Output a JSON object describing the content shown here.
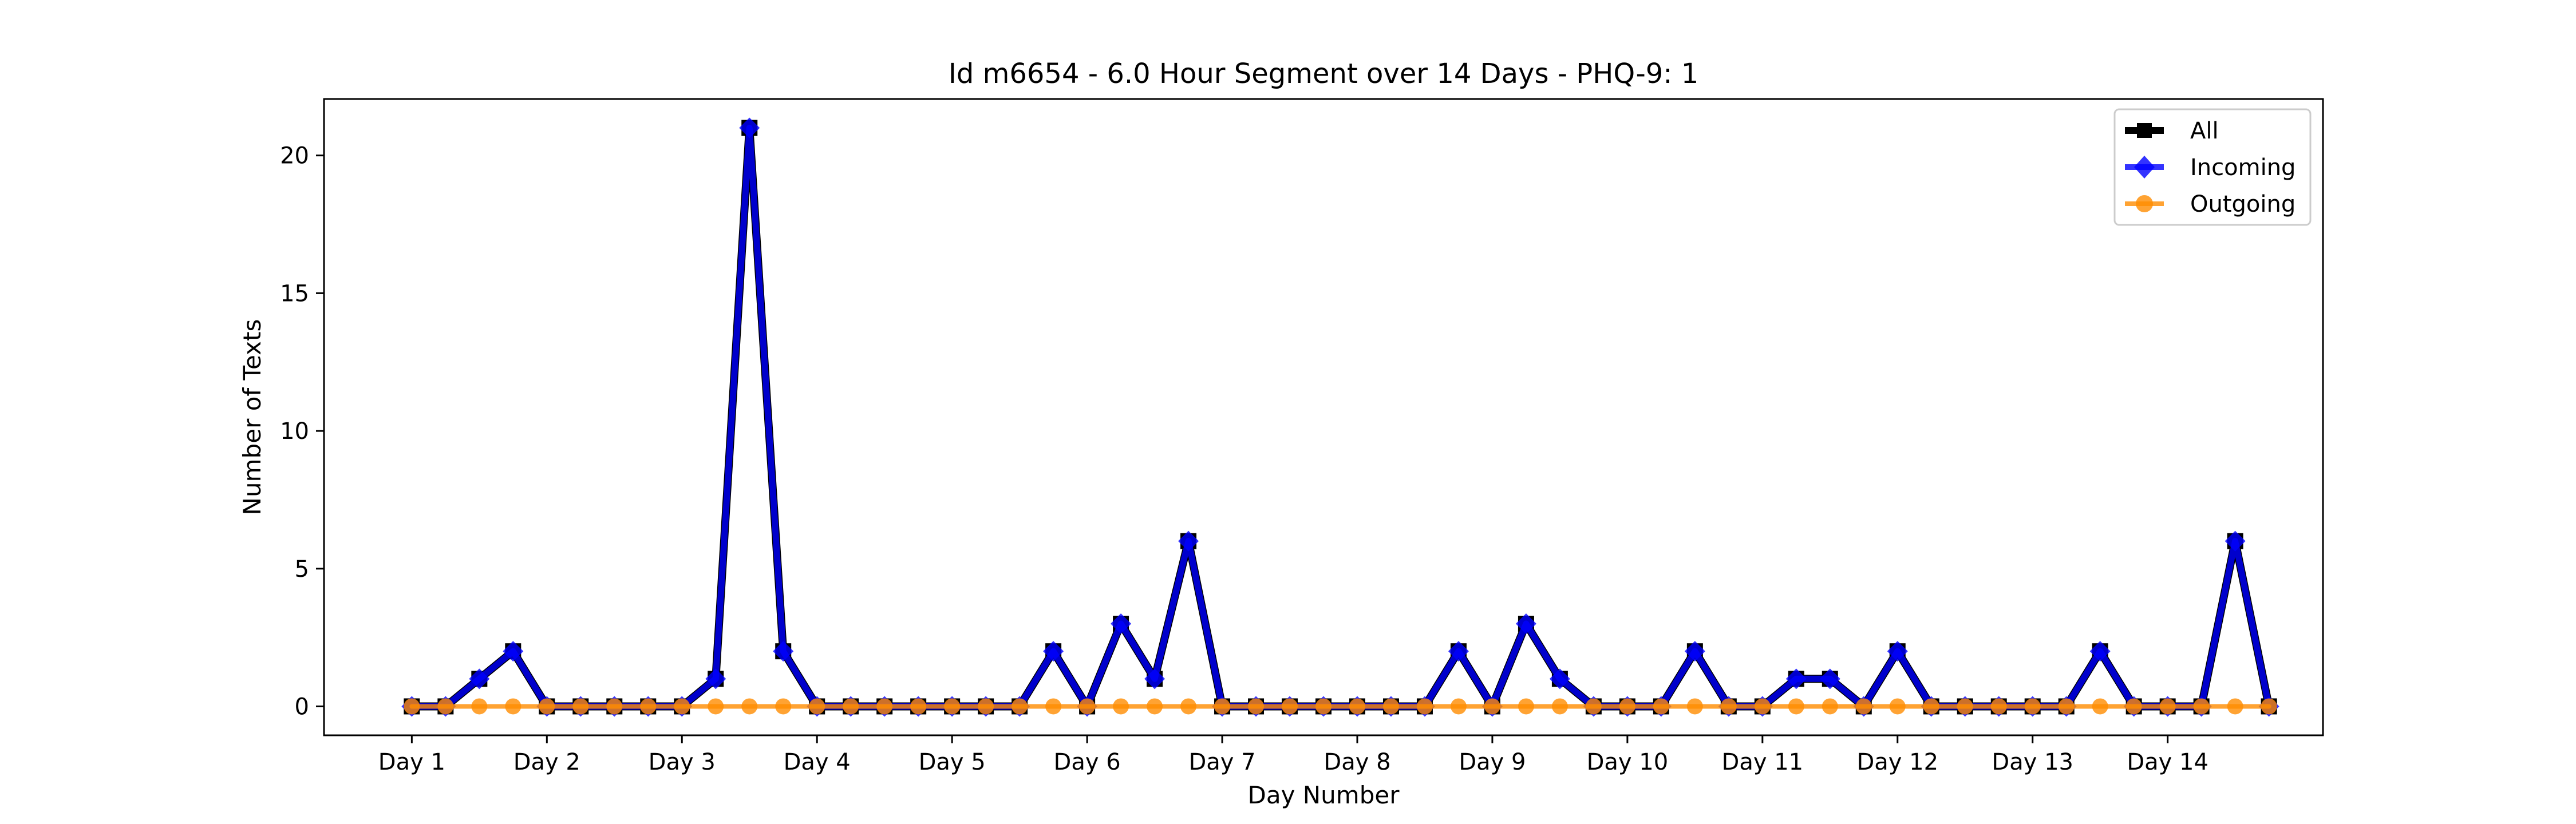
{
  "chart_data": {
    "type": "line",
    "title": "Id m6654 - 6.0 Hour Segment over 14 Days - PHQ-9: 1",
    "xlabel": "Day Number",
    "ylabel": "Number of Texts",
    "x_ticks": [
      "Day 1",
      "Day 2",
      "Day 3",
      "Day 4",
      "Day 5",
      "Day 6",
      "Day 7",
      "Day 8",
      "Day 9",
      "Day 10",
      "Day 11",
      "Day 12",
      "Day 13",
      "Day 14"
    ],
    "y_ticks": [
      0,
      5,
      10,
      15,
      20
    ],
    "xlim": [
      -0.65,
      14.15
    ],
    "ylim": [
      -1.05,
      22.05
    ],
    "grid": false,
    "legend_position": "top-right",
    "x": [
      0,
      0.25,
      0.5,
      0.75,
      1,
      1.25,
      1.5,
      1.75,
      2,
      2.25,
      2.5,
      2.75,
      3,
      3.25,
      3.5,
      3.75,
      4,
      4.25,
      4.5,
      4.75,
      5,
      5.25,
      5.5,
      5.75,
      6,
      6.25,
      6.5,
      6.75,
      7,
      7.25,
      7.5,
      7.75,
      8,
      8.25,
      8.5,
      8.75,
      9,
      9.25,
      9.5,
      9.75,
      10,
      10.25,
      10.5,
      10.75,
      11,
      11.25,
      11.5,
      11.75,
      12,
      12.25,
      12.5,
      12.75,
      13,
      13.25,
      13.5,
      13.75
    ],
    "series": [
      {
        "name": "All",
        "color": "#000000",
        "marker": "square",
        "values": [
          0,
          0,
          1,
          2,
          0,
          0,
          0,
          0,
          0,
          1,
          21,
          2,
          0,
          0,
          0,
          0,
          0,
          0,
          0,
          2,
          0,
          3,
          1,
          6,
          0,
          0,
          0,
          0,
          0,
          0,
          0,
          2,
          0,
          3,
          1,
          0,
          0,
          0,
          2,
          0,
          0,
          1,
          1,
          0,
          2,
          0,
          0,
          0,
          0,
          0,
          2,
          0,
          0,
          0,
          6,
          0
        ]
      },
      {
        "name": "Incoming",
        "color": "#0000ff",
        "marker": "diamond",
        "values": [
          0,
          0,
          1,
          2,
          0,
          0,
          0,
          0,
          0,
          1,
          21,
          2,
          0,
          0,
          0,
          0,
          0,
          0,
          0,
          2,
          0,
          3,
          1,
          6,
          0,
          0,
          0,
          0,
          0,
          0,
          0,
          2,
          0,
          3,
          1,
          0,
          0,
          0,
          2,
          0,
          0,
          1,
          1,
          0,
          2,
          0,
          0,
          0,
          0,
          0,
          2,
          0,
          0,
          0,
          6,
          0
        ]
      },
      {
        "name": "Outgoing",
        "color": "#ff8c00",
        "marker": "circle",
        "values": [
          0,
          0,
          0,
          0,
          0,
          0,
          0,
          0,
          0,
          0,
          0,
          0,
          0,
          0,
          0,
          0,
          0,
          0,
          0,
          0,
          0,
          0,
          0,
          0,
          0,
          0,
          0,
          0,
          0,
          0,
          0,
          0,
          0,
          0,
          0,
          0,
          0,
          0,
          0,
          0,
          0,
          0,
          0,
          0,
          0,
          0,
          0,
          0,
          0,
          0,
          0,
          0,
          0,
          0,
          0,
          0
        ]
      }
    ]
  }
}
